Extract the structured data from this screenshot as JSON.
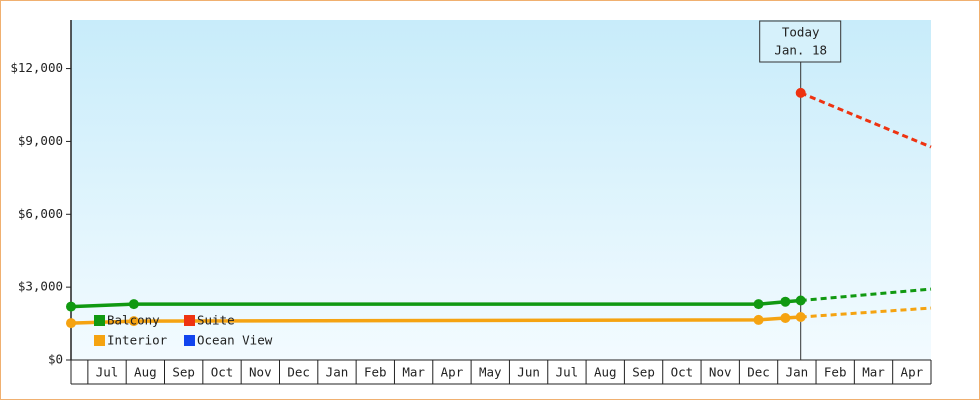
{
  "chart_data": {
    "type": "line",
    "categories": [
      "Jul",
      "Aug",
      "Sep",
      "Oct",
      "Nov",
      "Dec",
      "Jan",
      "Feb",
      "Mar",
      "Apr",
      "May",
      "Jun",
      "Jul",
      "Aug",
      "Sep",
      "Oct",
      "Nov",
      "Dec",
      "Jan",
      "Feb",
      "Mar",
      "Apr"
    ],
    "xlim": [
      -0.44,
      22
    ],
    "ylim": [
      0,
      14000
    ],
    "yticks": [
      {
        "value": 0,
        "label": "$0"
      },
      {
        "value": 3000,
        "label": "$3,000"
      },
      {
        "value": 6000,
        "label": "$6,000"
      },
      {
        "value": 9000,
        "label": "$9,000"
      },
      {
        "value": 12000,
        "label": "$12,000"
      }
    ],
    "legend": "lower left",
    "series": [
      {
        "name": "Balcony",
        "color": "#119911",
        "x": [
          -0.44,
          1.2,
          17.5,
          18.2,
          18.6
        ],
        "values": [
          2200,
          2300,
          2300,
          2400,
          2450
        ],
        "projection": {
          "x": [
            22
          ],
          "values": [
            2920
          ]
        }
      },
      {
        "name": "Suite",
        "color": "#ee3311",
        "x": [
          18.6
        ],
        "values": [
          11000
        ],
        "projection": {
          "x": [
            22
          ],
          "values": [
            8770
          ]
        }
      },
      {
        "name": "Interior",
        "color": "#f5a311",
        "x": [
          -0.44,
          1.2,
          17.5,
          18.2,
          18.6
        ],
        "values": [
          1520,
          1600,
          1650,
          1730,
          1770
        ],
        "projection": {
          "x": [
            22
          ],
          "values": [
            2140
          ]
        }
      },
      {
        "name": "Ocean View",
        "color": "#1144ee",
        "x": [],
        "values": []
      }
    ],
    "marker": {
      "x": 18.6,
      "label": [
        "Today",
        "Jan. 18"
      ]
    }
  }
}
